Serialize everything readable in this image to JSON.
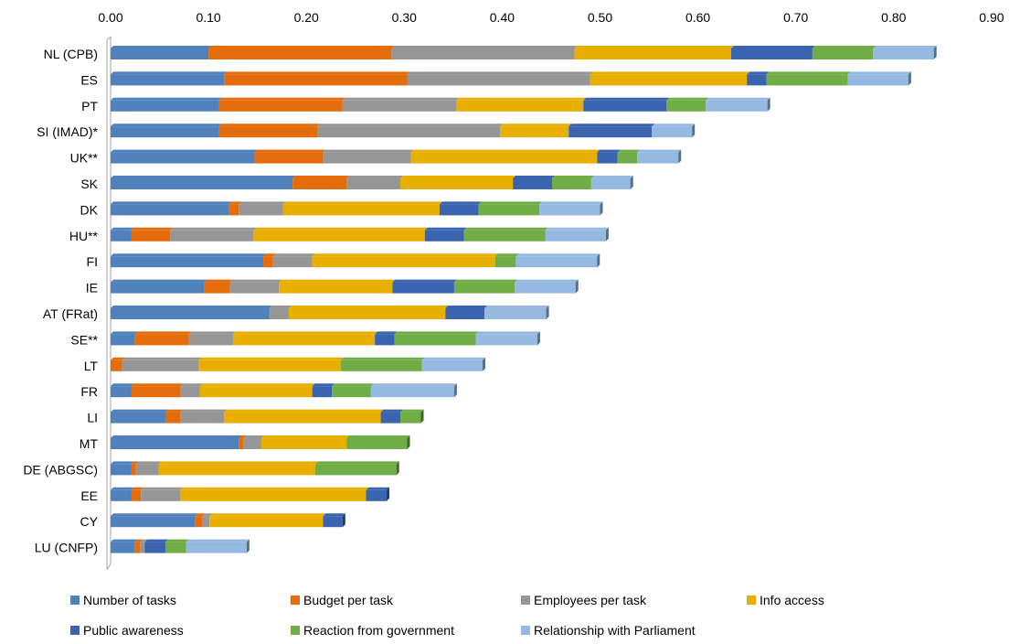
{
  "chart_data": {
    "type": "bar",
    "orientation": "horizontal",
    "stacked": true,
    "xlim": [
      0,
      0.9
    ],
    "x_ticks": [
      "0.00",
      "0.10",
      "0.20",
      "0.30",
      "0.40",
      "0.50",
      "0.60",
      "0.70",
      "0.80",
      "0.90"
    ],
    "x_axis_position": "top",
    "grid": false,
    "legend_position": "bottom",
    "categories": [
      "NL (CPB)",
      "ES",
      "PT",
      "SI (IMAD)*",
      "UK**",
      "SK",
      "DK",
      "HU**",
      "FI",
      "IE",
      "AT (FRat)",
      "SE**",
      "LT",
      "FR",
      "LI",
      "MT",
      "DE (ABGSC)",
      "EE",
      "CY",
      "LU (CNFP)"
    ],
    "series": [
      {
        "name": "Number of tasks",
        "color": "#4f81bd",
        "values": [
          0.1,
          0.116,
          0.111,
          0.111,
          0.147,
          0.186,
          0.121,
          0.021,
          0.156,
          0.096,
          0.162,
          0.025,
          0.0,
          0.021,
          0.056,
          0.131,
          0.021,
          0.021,
          0.086,
          0.025
        ]
      },
      {
        "name": "Budget per task",
        "color": "#e46c0a",
        "values": [
          0.187,
          0.187,
          0.126,
          0.1,
          0.07,
          0.055,
          0.01,
          0.04,
          0.01,
          0.026,
          0.0,
          0.055,
          0.012,
          0.05,
          0.015,
          0.005,
          0.005,
          0.01,
          0.008,
          0.005
        ]
      },
      {
        "name": "Employees per task",
        "color": "#969696",
        "values": [
          0.187,
          0.187,
          0.116,
          0.187,
          0.09,
          0.055,
          0.045,
          0.085,
          0.04,
          0.05,
          0.02,
          0.045,
          0.078,
          0.02,
          0.045,
          0.018,
          0.023,
          0.04,
          0.007,
          0.005
        ]
      },
      {
        "name": "Info access",
        "color": "#e8ae00",
        "values": [
          0.16,
          0.16,
          0.13,
          0.07,
          0.19,
          0.115,
          0.16,
          0.175,
          0.187,
          0.116,
          0.16,
          0.145,
          0.145,
          0.115,
          0.16,
          0.087,
          0.16,
          0.19,
          0.116,
          0.0
        ]
      },
      {
        "name": "Public awareness",
        "color": "#3a64b0",
        "values": [
          0.083,
          0.02,
          0.085,
          0.085,
          0.021,
          0.04,
          0.04,
          0.04,
          0.0,
          0.063,
          0.04,
          0.02,
          0.0,
          0.02,
          0.02,
          0.0,
          0.0,
          0.021,
          0.02,
          0.021
        ]
      },
      {
        "name": "Reaction from government",
        "color": "#70ad47",
        "values": [
          0.062,
          0.083,
          0.04,
          0.0,
          0.02,
          0.04,
          0.062,
          0.083,
          0.021,
          0.062,
          0.0,
          0.083,
          0.083,
          0.04,
          0.021,
          0.062,
          0.083,
          0.0,
          0.0,
          0.021
        ]
      },
      {
        "name": "Relationship with Parliament",
        "color": "#95b9e0",
        "values": [
          0.062,
          0.062,
          0.063,
          0.041,
          0.042,
          0.04,
          0.062,
          0.062,
          0.083,
          0.062,
          0.063,
          0.063,
          0.062,
          0.085,
          0.0,
          0.0,
          0.0,
          0.0,
          0.0,
          0.062
        ]
      }
    ]
  }
}
